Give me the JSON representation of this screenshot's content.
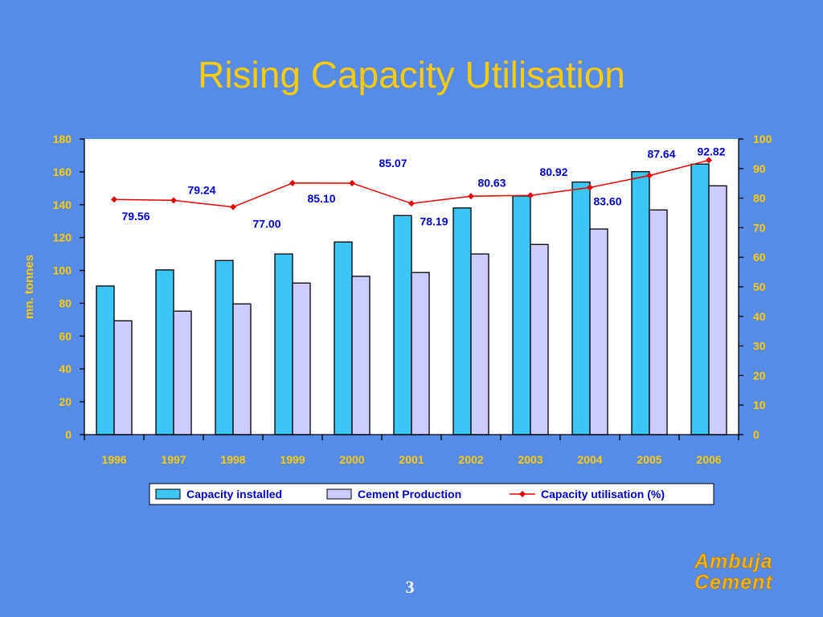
{
  "slide": {
    "title": "Rising Capacity Utilisation",
    "page_number": "3",
    "logo_line1": "Ambuja",
    "logo_line2": "Cement"
  },
  "colors": {
    "background": "#568BE8",
    "title": "#FFCC00",
    "axis_text": "#FFCC00",
    "capacity_bar": "#3CC6F5",
    "production_bar": "#CCCCFF",
    "utilisation_line": "#E80000",
    "data_label": "#0000CC"
  },
  "chart_data": {
    "type": "bar",
    "title": "Rising Capacity Utilisation",
    "xlabel": "",
    "ylabel": "mn. tonnes",
    "y2label": "",
    "categories": [
      "1996",
      "1997",
      "1998",
      "1999",
      "2000",
      "2001",
      "2002",
      "2003",
      "2004",
      "2005",
      "2006"
    ],
    "ylim": [
      0,
      180
    ],
    "yticks": [
      0,
      20,
      40,
      60,
      80,
      100,
      120,
      140,
      160,
      180
    ],
    "y2lim": [
      0,
      100
    ],
    "y2ticks": [
      0,
      10,
      20,
      30,
      40,
      50,
      60,
      70,
      80,
      90,
      100
    ],
    "grid": false,
    "legend_position": "bottom",
    "series": [
      {
        "name": "Capacity installed",
        "type": "bar",
        "axis": "left",
        "values": [
          90.5,
          100.3,
          106.0,
          110.0,
          117.3,
          133.4,
          138.0,
          145.3,
          153.8,
          160.1,
          164.7
        ]
      },
      {
        "name": "Cement Production",
        "type": "bar",
        "axis": "left",
        "values": [
          69.3,
          75.2,
          79.6,
          92.3,
          96.4,
          98.7,
          110.0,
          115.8,
          125.2,
          136.8,
          151.5
        ]
      },
      {
        "name": "Capacity utilisation (%)",
        "type": "line",
        "axis": "right",
        "values": [
          79.56,
          79.24,
          77.0,
          85.1,
          85.07,
          78.19,
          80.63,
          80.92,
          83.6,
          87.64,
          92.82
        ],
        "labels": [
          "79.56",
          "79.24",
          "77.00",
          "85.10",
          "85.07",
          "78.19",
          "80.63",
          "80.92",
          "83.60",
          "87.64",
          "92.82"
        ]
      }
    ]
  }
}
